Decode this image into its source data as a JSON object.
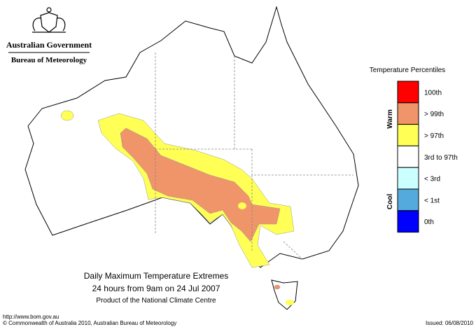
{
  "header": {
    "line1": "Australian Government",
    "line2": "Bureau of Meteorology"
  },
  "legend": {
    "title": "Temperature Percentiles",
    "warm": "Warm",
    "cool": "Cool",
    "items": [
      {
        "label": "100th",
        "color": "#ff0000"
      },
      {
        "label": "> 99th",
        "color": "#f0946a"
      },
      {
        "label": "> 97th",
        "color": "#ffff55"
      },
      {
        "label": "3rd to 97th",
        "color": "#ffffff"
      },
      {
        "label": "< 3rd",
        "color": "#ccffff"
      },
      {
        "label": "< 1st",
        "color": "#55aadd"
      },
      {
        "label": "0th",
        "color": "#0000ff"
      }
    ]
  },
  "caption": {
    "title": "Daily Maximum Temperature Extremes",
    "subtitle": "24 hours from 9am on 24 Jul 2007",
    "note": "Product of the National Climate Centre"
  },
  "footer": {
    "url": "http://www.bom.gov.au",
    "copyright": "© Commonwealth of Australia 2010, Australian Bureau of Meteorology",
    "issued": "Issued: 06/08/2010"
  }
}
